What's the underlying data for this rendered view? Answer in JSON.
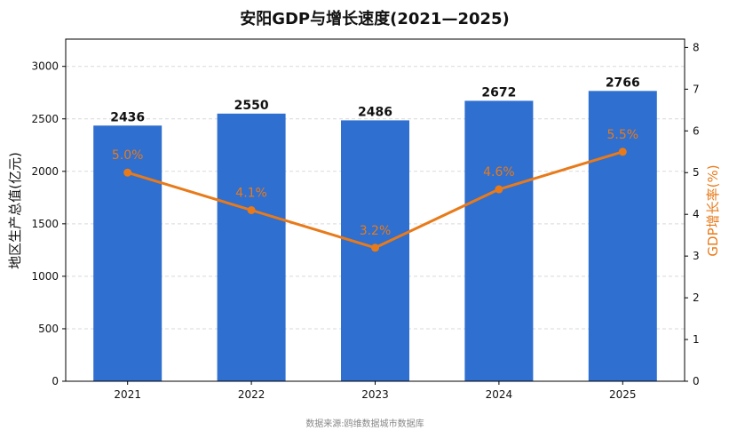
{
  "chart_data": {
    "type": "bar",
    "title": "安阳GDP与增长速度(2021—2025)",
    "categories": [
      "2021",
      "2022",
      "2023",
      "2024",
      "2025"
    ],
    "series": [
      {
        "type": "bar",
        "axis": "left",
        "values": [
          2436,
          2550,
          2486,
          2672,
          2766
        ],
        "value_labels": [
          "2436",
          "2550",
          "2486",
          "2672",
          "2766"
        ],
        "color": "#2f6fd0"
      },
      {
        "type": "line",
        "axis": "right",
        "values": [
          5.0,
          4.1,
          3.2,
          4.6,
          5.5
        ],
        "value_labels": [
          "5.0%",
          "4.1%",
          "3.2%",
          "4.6%",
          "5.5%"
        ],
        "color": "#e87a1a"
      }
    ],
    "ylabel": "地区生产总值(亿元)",
    "ylabel_right": "GDP增长率(%)",
    "ylim": [
      0,
      3260
    ],
    "ylim_right": [
      0,
      8.2
    ],
    "yticks": [
      "0",
      "500",
      "1000",
      "1500",
      "2000",
      "2500",
      "3000"
    ],
    "yticks_right": [
      "0",
      "1",
      "2",
      "3",
      "4",
      "5",
      "6",
      "7",
      "8"
    ],
    "grid": "horizontal dashed",
    "source": "数据来源:鸥维数据城市数据库"
  }
}
